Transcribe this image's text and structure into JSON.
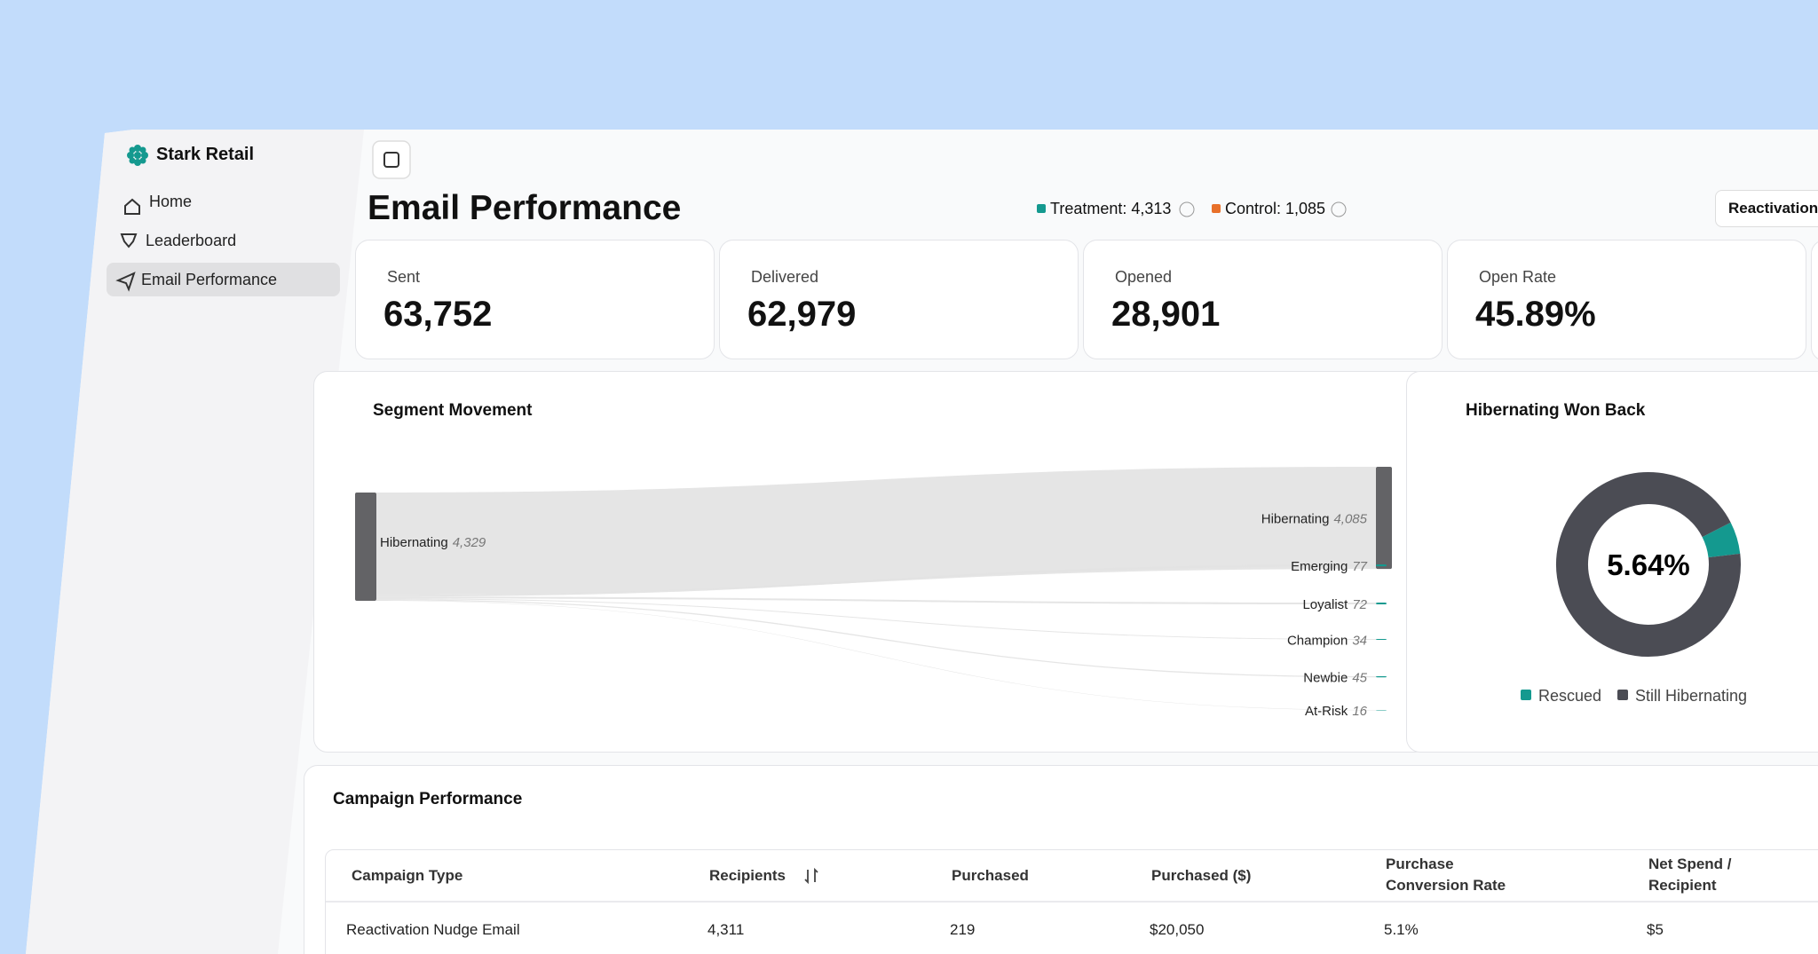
{
  "sidebar": {
    "brand": "Stark Retail",
    "nav": [
      "Home",
      "Leaderboard",
      "Email Performance"
    ]
  },
  "header": {
    "title": "Email Performance",
    "treatment": "Treatment: 4,313",
    "control": "Control: 1,085",
    "button": "Reactivation"
  },
  "kpis": [
    {
      "label": "Sent",
      "value": "63,752"
    },
    {
      "label": "Delivered",
      "value": "62,979"
    },
    {
      "label": "Opened",
      "value": "28,901"
    },
    {
      "label": "Open Rate",
      "value": "45.89%"
    }
  ],
  "chart_data": [
    {
      "type": "sankey",
      "title": "Segment Movement",
      "source": "Hibernating",
      "source_value": 4329,
      "source_value_label": "4,329",
      "categories": [
        "Hibernating",
        "Emerging",
        "Loyalist",
        "Champion",
        "Newbie",
        "At-Risk"
      ],
      "values": [
        4085,
        77,
        72,
        34,
        45,
        16
      ],
      "value_labels": [
        "4,085",
        "77",
        "72",
        "34",
        "45",
        "16"
      ],
      "colors": {
        "node": "#636366",
        "target": "#14998f",
        "flow": "#e2e2e2"
      }
    },
    {
      "type": "pie",
      "title": "Hibernating Won Back",
      "categories": [
        "Rescued",
        "Still Hibernating"
      ],
      "values": [
        5.64,
        94.36
      ],
      "value_labels": [
        "5.64%",
        null
      ],
      "colors": [
        "#14998f",
        "#4b4c54"
      ]
    }
  ],
  "table": {
    "title": "Campaign Performance",
    "columns": [
      "Campaign Type",
      "Recipients",
      "Purchased",
      "Purchased ($)",
      "Purchase Conversion Rate",
      "Net Spend / Recipient"
    ],
    "rows": [
      [
        "Reactivation Nudge Email",
        "4,311",
        "219",
        "$20,050",
        "5.1%",
        "$5"
      ]
    ]
  }
}
